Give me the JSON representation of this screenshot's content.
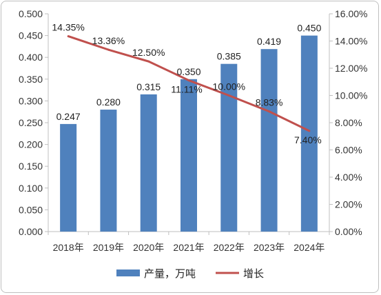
{
  "chart_data": {
    "type": "bar+line",
    "categories": [
      "2018年",
      "2019年",
      "2020年",
      "2021年",
      "2022年",
      "2023年",
      "2024年"
    ],
    "series": [
      {
        "name": "产量，万吨",
        "type": "bar",
        "axis": "left",
        "values": [
          0.247,
          0.28,
          0.315,
          0.35,
          0.385,
          0.419,
          0.45
        ],
        "labels": [
          "0.247",
          "0.280",
          "0.315",
          "0.350",
          "0.385",
          "0.419",
          "0.450"
        ],
        "color": "#4f81bd"
      },
      {
        "name": "增长",
        "type": "line",
        "axis": "right",
        "values": [
          14.35,
          13.36,
          12.5,
          11.11,
          10.0,
          8.83,
          7.4
        ],
        "labels": [
          "14.35%",
          "13.36%",
          "12.50%",
          "11.11%",
          "10.00%",
          "8.83%",
          "7.40%"
        ],
        "color": "#c0504d"
      }
    ],
    "y_left": {
      "range": [
        0,
        0.5
      ],
      "ticks": [
        "0.000",
        "0.050",
        "0.100",
        "0.150",
        "0.200",
        "0.250",
        "0.300",
        "0.350",
        "0.400",
        "0.450",
        "0.500"
      ]
    },
    "y_right": {
      "range": [
        0,
        16
      ],
      "unit": "%",
      "ticks": [
        "0.00%",
        "2.00%",
        "4.00%",
        "6.00%",
        "8.00%",
        "10.00%",
        "12.00%",
        "14.00%",
        "16.00%"
      ]
    },
    "grid": false,
    "legend_position": "bottom"
  }
}
